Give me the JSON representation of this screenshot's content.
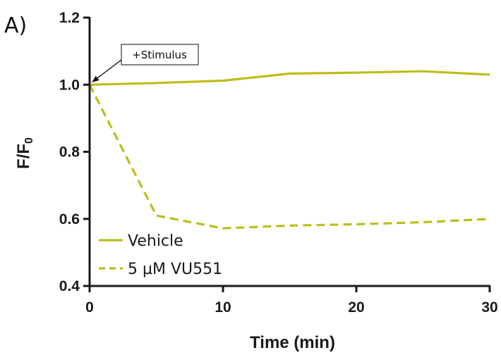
{
  "panel_label": "A)",
  "chart_data": {
    "type": "line",
    "xlabel": "Time (min)",
    "ylabel": "F/F",
    "ylabel_subscript": "0",
    "xlim": [
      0,
      30
    ],
    "ylim": [
      0.4,
      1.2
    ],
    "xticks": [
      0,
      10,
      20,
      30
    ],
    "xtick_labels": [
      "0",
      "10",
      "20",
      "30"
    ],
    "yticks": [
      0.4,
      0.6,
      0.8,
      1.0,
      1.2
    ],
    "ytick_labels": [
      "0.4",
      "0.6",
      "0.8",
      "1.0",
      "1.2"
    ],
    "grid": false,
    "legend_position": "bottom-left",
    "series": [
      {
        "name": "Vehicle",
        "style": "solid",
        "color": "#bdbd1a",
        "x": [
          0,
          5,
          10,
          15,
          20,
          25,
          30
        ],
        "y": [
          1.0,
          1.005,
          1.012,
          1.033,
          1.036,
          1.04,
          1.03
        ]
      },
      {
        "name": "5 µM VU551",
        "style": "dashed",
        "color": "#bdbd1a",
        "x": [
          0,
          5,
          10,
          15,
          20,
          25,
          30
        ],
        "y": [
          1.0,
          0.61,
          0.572,
          0.58,
          0.584,
          0.59,
          0.6
        ]
      }
    ],
    "annotations": [
      {
        "text": "+Stimulus",
        "x": 0,
        "y": 1.0
      }
    ]
  }
}
